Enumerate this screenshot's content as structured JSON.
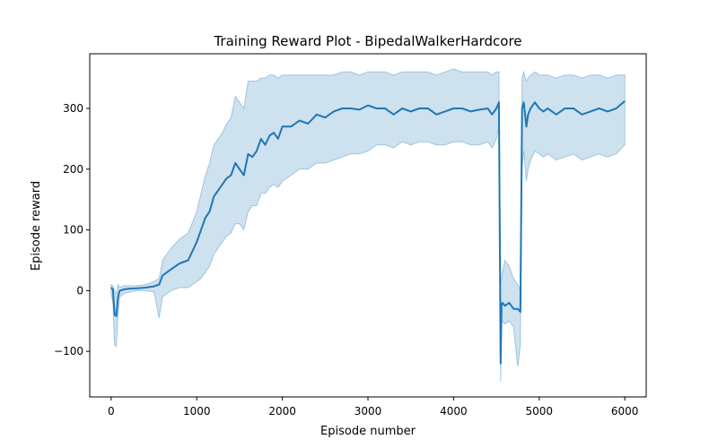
{
  "chart_data": {
    "type": "line",
    "title": "Training Reward Plot - BipedalWalkerHardcore",
    "xlabel": "Episode number",
    "ylabel": "Episode reward",
    "xlim": [
      -250,
      6250
    ],
    "ylim": [
      -175,
      390
    ],
    "xticks": [
      0,
      1000,
      2000,
      3000,
      4000,
      5000,
      6000
    ],
    "yticks": [
      -100,
      0,
      100,
      200,
      300
    ],
    "grid": false,
    "legend": "none",
    "colors": {
      "line": "#1f77b4",
      "band": "#1f77b4"
    },
    "series": [
      {
        "x": [
          0,
          20,
          40,
          60,
          80,
          100,
          150,
          200,
          300,
          400,
          500,
          560,
          600,
          700,
          800,
          900,
          1000,
          1050,
          1100,
          1150,
          1200,
          1250,
          1300,
          1350,
          1400,
          1450,
          1500,
          1550,
          1600,
          1650,
          1700,
          1750,
          1800,
          1850,
          1900,
          1950,
          2000,
          2100,
          2200,
          2300,
          2400,
          2500,
          2600,
          2700,
          2800,
          2900,
          3000,
          3100,
          3200,
          3300,
          3400,
          3500,
          3600,
          3700,
          3800,
          3900,
          4000,
          4100,
          4200,
          4300,
          4400,
          4450,
          4500,
          4530,
          4550,
          4560,
          4570,
          4600,
          4650,
          4700,
          4750,
          4780,
          4800,
          4820,
          4850,
          4870,
          4900,
          4950,
          5000,
          5050,
          5100,
          5200,
          5300,
          5400,
          5500,
          5600,
          5700,
          5800,
          5900,
          6000
        ],
        "y": [
          5,
          2,
          -40,
          -42,
          -10,
          0,
          2,
          3,
          4,
          5,
          7,
          10,
          25,
          35,
          45,
          50,
          80,
          100,
          120,
          130,
          155,
          165,
          175,
          185,
          190,
          210,
          200,
          190,
          225,
          220,
          230,
          250,
          240,
          255,
          260,
          250,
          270,
          270,
          280,
          275,
          290,
          285,
          295,
          300,
          300,
          298,
          305,
          300,
          300,
          290,
          300,
          295,
          300,
          300,
          290,
          295,
          300,
          300,
          295,
          298,
          300,
          290,
          300,
          310,
          -120,
          -25,
          -20,
          -25,
          -20,
          -30,
          -30,
          -35,
          300,
          310,
          270,
          290,
          300,
          310,
          300,
          295,
          300,
          290,
          300,
          300,
          290,
          295,
          300,
          295,
          300,
          312
        ],
        "lower": [
          -5,
          -20,
          -90,
          -92,
          -40,
          -10,
          -5,
          -3,
          0,
          0,
          -2,
          -45,
          -10,
          0,
          5,
          5,
          15,
          20,
          30,
          40,
          60,
          70,
          80,
          90,
          95,
          110,
          110,
          100,
          130,
          140,
          140,
          160,
          160,
          170,
          175,
          170,
          180,
          190,
          200,
          200,
          210,
          210,
          215,
          220,
          225,
          225,
          230,
          240,
          240,
          235,
          245,
          240,
          245,
          245,
          240,
          240,
          245,
          245,
          240,
          240,
          245,
          235,
          250,
          270,
          -150,
          -60,
          -50,
          -55,
          -50,
          -60,
          -125,
          -90,
          200,
          230,
          180,
          200,
          215,
          230,
          225,
          220,
          225,
          215,
          220,
          225,
          215,
          220,
          225,
          220,
          225,
          240
        ],
        "upper": [
          10,
          8,
          0,
          -5,
          10,
          5,
          8,
          8,
          8,
          10,
          15,
          20,
          50,
          70,
          85,
          95,
          130,
          160,
          190,
          210,
          240,
          250,
          260,
          275,
          285,
          320,
          310,
          300,
          345,
          345,
          345,
          350,
          350,
          355,
          355,
          350,
          355,
          355,
          355,
          355,
          355,
          355,
          355,
          360,
          360,
          355,
          360,
          360,
          360,
          355,
          360,
          360,
          360,
          360,
          355,
          360,
          365,
          360,
          360,
          360,
          360,
          355,
          360,
          360,
          10,
          20,
          30,
          50,
          40,
          20,
          10,
          0,
          350,
          360,
          345,
          350,
          355,
          360,
          355,
          355,
          355,
          350,
          355,
          355,
          350,
          355,
          355,
          350,
          355,
          355
        ]
      }
    ]
  }
}
